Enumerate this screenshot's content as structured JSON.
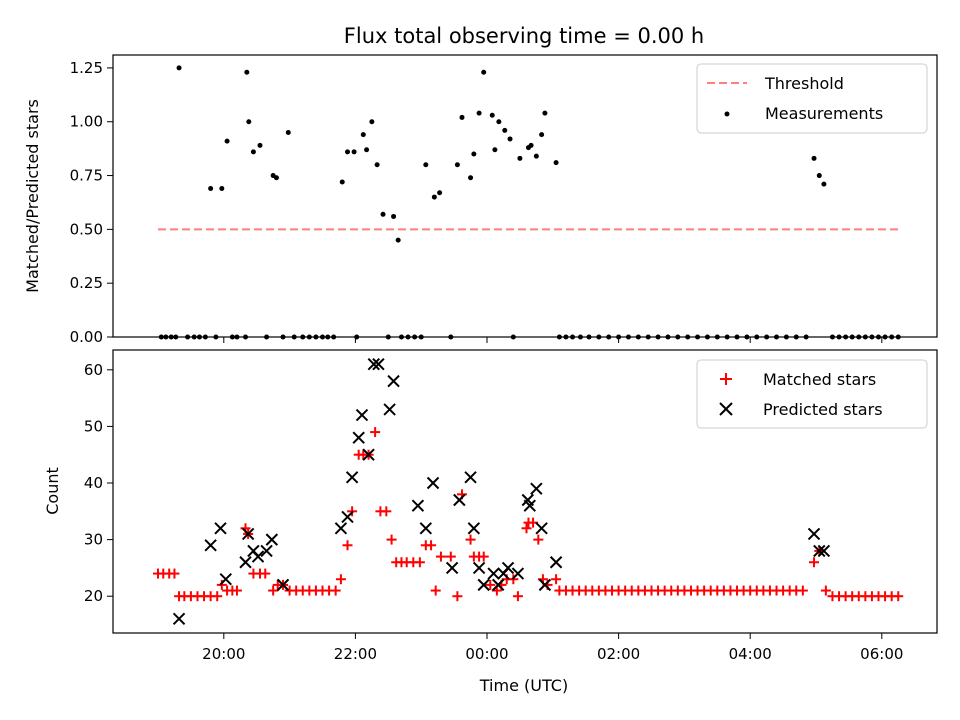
{
  "chart_data": [
    {
      "type": "scatter",
      "title": "Flux total observing time = 0.00 h",
      "xlabel": "",
      "ylabel": "Matched/Predicted stars",
      "ylim": [
        0,
        1.31
      ],
      "yticks": [
        "0.00",
        "0.25",
        "0.50",
        "0.75",
        "1.00",
        "1.25"
      ],
      "legend_position": "top-right",
      "series": [
        {
          "name": "Threshold",
          "kind": "dashed-line",
          "color": "#ff7f7f",
          "points": [
            [
              -5.0,
              0.5
            ],
            [
              6.25,
              0.5
            ]
          ]
        },
        {
          "name": "Measurements",
          "kind": "dot",
          "color": "#000000",
          "points": [
            [
              -4.95,
              0
            ],
            [
              -4.88,
              0
            ],
            [
              -4.8,
              0
            ],
            [
              -4.73,
              0
            ],
            [
              -4.68,
              1.25
            ],
            [
              -4.55,
              0
            ],
            [
              -4.45,
              0
            ],
            [
              -4.37,
              0
            ],
            [
              -4.28,
              0
            ],
            [
              -4.2,
              0.69
            ],
            [
              -4.12,
              0
            ],
            [
              -4.03,
              0.69
            ],
            [
              -3.95,
              0.91
            ],
            [
              -3.87,
              0
            ],
            [
              -3.8,
              0
            ],
            [
              -3.67,
              0
            ],
            [
              -3.65,
              1.23
            ],
            [
              -3.62,
              1.0
            ],
            [
              -3.55,
              0.86
            ],
            [
              -3.45,
              0.89
            ],
            [
              -3.35,
              0
            ],
            [
              -3.25,
              0.75
            ],
            [
              -3.2,
              0.74
            ],
            [
              -3.1,
              0
            ],
            [
              -3.02,
              0.95
            ],
            [
              -2.93,
              0
            ],
            [
              -2.8,
              0
            ],
            [
              -2.7,
              0
            ],
            [
              -2.6,
              0
            ],
            [
              -2.5,
              0
            ],
            [
              -2.42,
              0
            ],
            [
              -2.33,
              0
            ],
            [
              -2.2,
              0.72
            ],
            [
              -2.12,
              0.86
            ],
            [
              -2.02,
              0.86
            ],
            [
              -1.98,
              0
            ],
            [
              -1.88,
              0.94
            ],
            [
              -1.83,
              0.87
            ],
            [
              -1.75,
              1.0
            ],
            [
              -1.67,
              0.8
            ],
            [
              -1.58,
              0.57
            ],
            [
              -1.5,
              0
            ],
            [
              -1.42,
              0.56
            ],
            [
              -1.35,
              0.45
            ],
            [
              -1.3,
              0
            ],
            [
              -1.2,
              0
            ],
            [
              -1.1,
              0
            ],
            [
              -1.0,
              0
            ],
            [
              -0.93,
              0.8
            ],
            [
              -0.8,
              0.65
            ],
            [
              -0.72,
              0.67
            ],
            [
              -0.55,
              0
            ],
            [
              -0.45,
              0.8
            ],
            [
              -0.38,
              1.02
            ],
            [
              -0.25,
              0.74
            ],
            [
              -0.2,
              0.85
            ],
            [
              -0.12,
              1.04
            ],
            [
              -0.05,
              1.23
            ],
            [
              0.08,
              1.03
            ],
            [
              0.12,
              0.87
            ],
            [
              0.18,
              1.0
            ],
            [
              0.27,
              0.96
            ],
            [
              0.35,
              0.92
            ],
            [
              0.4,
              0
            ],
            [
              0.5,
              0.83
            ],
            [
              0.63,
              0.88
            ],
            [
              0.67,
              0.89
            ],
            [
              0.75,
              0.84
            ],
            [
              0.83,
              0.94
            ],
            [
              0.88,
              1.04
            ],
            [
              1.05,
              0.81
            ],
            [
              1.1,
              0
            ],
            [
              1.2,
              0
            ],
            [
              1.3,
              0
            ],
            [
              1.42,
              0
            ],
            [
              1.55,
              0
            ],
            [
              1.7,
              0
            ],
            [
              1.85,
              0
            ],
            [
              2.0,
              0
            ],
            [
              2.15,
              0
            ],
            [
              2.3,
              0
            ],
            [
              2.45,
              0
            ],
            [
              2.6,
              0
            ],
            [
              2.75,
              0
            ],
            [
              2.9,
              0
            ],
            [
              3.05,
              0
            ],
            [
              3.2,
              0
            ],
            [
              3.35,
              0
            ],
            [
              3.5,
              0
            ],
            [
              3.65,
              0
            ],
            [
              3.8,
              0
            ],
            [
              3.95,
              0
            ],
            [
              4.1,
              0
            ],
            [
              4.25,
              0
            ],
            [
              4.4,
              0
            ],
            [
              4.55,
              0
            ],
            [
              4.7,
              0
            ],
            [
              4.85,
              0
            ],
            [
              4.97,
              0.83
            ],
            [
              5.05,
              0.75
            ],
            [
              5.12,
              0.71
            ],
            [
              5.25,
              0
            ],
            [
              5.35,
              0
            ],
            [
              5.45,
              0
            ],
            [
              5.55,
              0
            ],
            [
              5.65,
              0
            ],
            [
              5.75,
              0
            ],
            [
              5.85,
              0
            ],
            [
              5.95,
              0
            ],
            [
              6.05,
              0
            ],
            [
              6.15,
              0
            ],
            [
              6.25,
              0
            ]
          ]
        }
      ]
    },
    {
      "type": "scatter",
      "title": "",
      "xlabel": "Time (UTC)",
      "ylabel": "Count",
      "ylim": [
        13.5,
        63.5
      ],
      "yticks": [
        "20",
        "30",
        "40",
        "50",
        "60"
      ],
      "xticks": [
        "20:00",
        "22:00",
        "00:00",
        "02:00",
        "04:00",
        "06:00"
      ],
      "legend_position": "top-right",
      "series": [
        {
          "name": "Matched stars",
          "kind": "plus",
          "color": "#ff0000",
          "points": [
            [
              -5.0,
              24
            ],
            [
              -4.92,
              24
            ],
            [
              -4.83,
              24
            ],
            [
              -4.75,
              24
            ],
            [
              -4.68,
              20
            ],
            [
              -4.6,
              20
            ],
            [
              -4.5,
              20
            ],
            [
              -4.4,
              20
            ],
            [
              -4.3,
              20
            ],
            [
              -4.2,
              20
            ],
            [
              -4.1,
              20
            ],
            [
              -4.03,
              22
            ],
            [
              -3.95,
              21
            ],
            [
              -3.87,
              21
            ],
            [
              -3.8,
              21
            ],
            [
              -3.67,
              32
            ],
            [
              -3.63,
              31
            ],
            [
              -3.55,
              24
            ],
            [
              -3.45,
              24
            ],
            [
              -3.37,
              24
            ],
            [
              -3.25,
              21
            ],
            [
              -3.18,
              22
            ],
            [
              -3.1,
              22
            ],
            [
              -3.0,
              21
            ],
            [
              -2.9,
              21
            ],
            [
              -2.8,
              21
            ],
            [
              -2.7,
              21
            ],
            [
              -2.6,
              21
            ],
            [
              -2.5,
              21
            ],
            [
              -2.4,
              21
            ],
            [
              -2.3,
              21
            ],
            [
              -2.22,
              23
            ],
            [
              -2.12,
              29
            ],
            [
              -2.05,
              35
            ],
            [
              -1.95,
              45
            ],
            [
              -1.88,
              45
            ],
            [
              -1.8,
              45
            ],
            [
              -1.7,
              49
            ],
            [
              -1.62,
              35
            ],
            [
              -1.53,
              35
            ],
            [
              -1.45,
              30
            ],
            [
              -1.38,
              26
            ],
            [
              -1.3,
              26
            ],
            [
              -1.22,
              26
            ],
            [
              -1.12,
              26
            ],
            [
              -1.02,
              26
            ],
            [
              -0.93,
              29
            ],
            [
              -0.85,
              29
            ],
            [
              -0.78,
              21
            ],
            [
              -0.7,
              27
            ],
            [
              -0.55,
              27
            ],
            [
              -0.45,
              20
            ],
            [
              -0.38,
              38
            ],
            [
              -0.25,
              30
            ],
            [
              -0.2,
              27
            ],
            [
              -0.12,
              27
            ],
            [
              -0.05,
              27
            ],
            [
              0.05,
              22
            ],
            [
              0.15,
              21
            ],
            [
              0.22,
              22
            ],
            [
              0.3,
              23
            ],
            [
              0.4,
              23
            ],
            [
              0.47,
              20
            ],
            [
              0.6,
              32
            ],
            [
              0.63,
              33
            ],
            [
              0.7,
              33
            ],
            [
              0.78,
              30
            ],
            [
              0.85,
              23
            ],
            [
              0.92,
              22
            ],
            [
              1.05,
              23
            ],
            [
              1.1,
              21
            ],
            [
              1.2,
              21
            ],
            [
              1.3,
              21
            ],
            [
              1.4,
              21
            ],
            [
              1.5,
              21
            ],
            [
              1.6,
              21
            ],
            [
              1.7,
              21
            ],
            [
              1.8,
              21
            ],
            [
              1.9,
              21
            ],
            [
              2.0,
              21
            ],
            [
              2.1,
              21
            ],
            [
              2.2,
              21
            ],
            [
              2.3,
              21
            ],
            [
              2.4,
              21
            ],
            [
              2.5,
              21
            ],
            [
              2.6,
              21
            ],
            [
              2.7,
              21
            ],
            [
              2.8,
              21
            ],
            [
              2.9,
              21
            ],
            [
              3.0,
              21
            ],
            [
              3.1,
              21
            ],
            [
              3.2,
              21
            ],
            [
              3.3,
              21
            ],
            [
              3.4,
              21
            ],
            [
              3.5,
              21
            ],
            [
              3.6,
              21
            ],
            [
              3.7,
              21
            ],
            [
              3.8,
              21
            ],
            [
              3.9,
              21
            ],
            [
              4.0,
              21
            ],
            [
              4.1,
              21
            ],
            [
              4.2,
              21
            ],
            [
              4.3,
              21
            ],
            [
              4.4,
              21
            ],
            [
              4.5,
              21
            ],
            [
              4.6,
              21
            ],
            [
              4.7,
              21
            ],
            [
              4.8,
              21
            ],
            [
              4.97,
              26
            ],
            [
              5.05,
              28
            ],
            [
              5.15,
              21
            ],
            [
              5.25,
              20
            ],
            [
              5.35,
              20
            ],
            [
              5.45,
              20
            ],
            [
              5.55,
              20
            ],
            [
              5.65,
              20
            ],
            [
              5.75,
              20
            ],
            [
              5.85,
              20
            ],
            [
              5.95,
              20
            ],
            [
              6.05,
              20
            ],
            [
              6.15,
              20
            ],
            [
              6.25,
              20
            ]
          ]
        },
        {
          "name": "Predicted stars",
          "kind": "x",
          "color": "#000000",
          "points": [
            [
              -4.68,
              16
            ],
            [
              -4.2,
              29
            ],
            [
              -4.05,
              32
            ],
            [
              -3.97,
              23
            ],
            [
              -3.67,
              26
            ],
            [
              -3.63,
              31
            ],
            [
              -3.55,
              28
            ],
            [
              -3.48,
              27
            ],
            [
              -3.35,
              28
            ],
            [
              -3.27,
              30
            ],
            [
              -3.1,
              22
            ],
            [
              -2.22,
              32
            ],
            [
              -2.12,
              34
            ],
            [
              -2.05,
              41
            ],
            [
              -1.95,
              48
            ],
            [
              -1.9,
              52
            ],
            [
              -1.8,
              45
            ],
            [
              -1.72,
              61
            ],
            [
              -1.65,
              61
            ],
            [
              -1.48,
              53
            ],
            [
              -1.42,
              58
            ],
            [
              -1.05,
              36
            ],
            [
              -0.93,
              32
            ],
            [
              -0.82,
              40
            ],
            [
              -0.53,
              25
            ],
            [
              -0.42,
              37
            ],
            [
              -0.25,
              41
            ],
            [
              -0.2,
              32
            ],
            [
              -0.12,
              25
            ],
            [
              -0.05,
              22
            ],
            [
              0.1,
              24
            ],
            [
              0.17,
              22
            ],
            [
              0.25,
              24
            ],
            [
              0.32,
              25
            ],
            [
              0.47,
              24
            ],
            [
              0.62,
              37
            ],
            [
              0.65,
              36
            ],
            [
              0.75,
              39
            ],
            [
              0.83,
              32
            ],
            [
              0.88,
              22
            ],
            [
              1.05,
              26
            ],
            [
              4.97,
              31
            ],
            [
              5.05,
              28
            ],
            [
              5.12,
              28
            ]
          ]
        }
      ]
    }
  ]
}
